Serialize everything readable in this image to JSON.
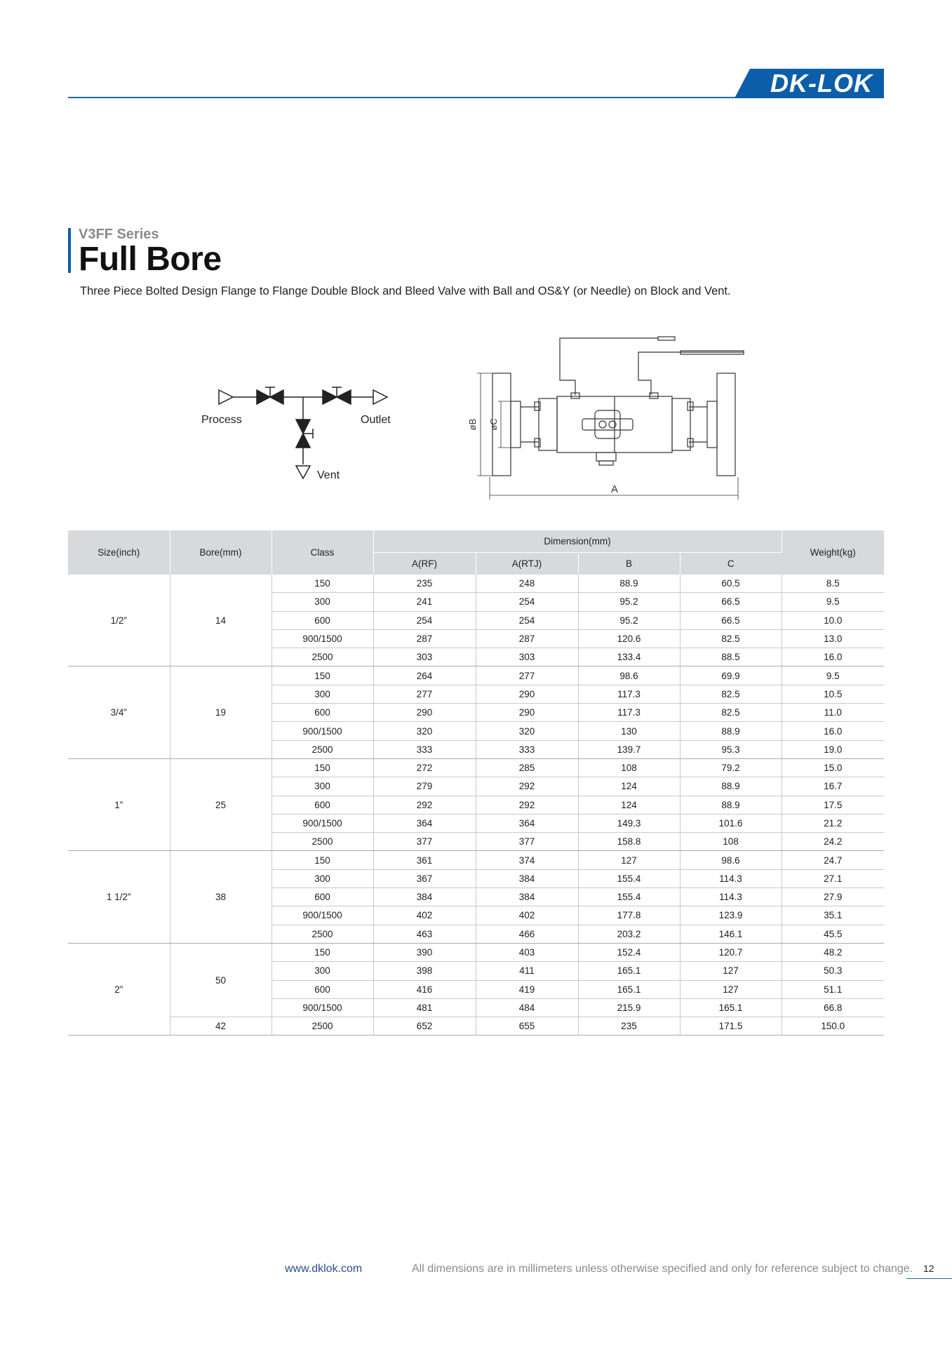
{
  "header": {
    "logo_text": "DK-LOK",
    "brand_color": "#0c5ea8"
  },
  "section": {
    "series": "V3FF Series",
    "title": "Full Bore",
    "description": "Three Piece Bolted Design Flange to Flange Double Block and Bleed Valve with Ball and OS&Y (or Needle) on Block and Vent."
  },
  "schematic": {
    "process_label": "Process",
    "outlet_label": "Outlet",
    "vent_label": "Vent"
  },
  "drawing": {
    "dim_a": "A",
    "dim_b": "øB",
    "dim_c": "øC"
  },
  "table": {
    "headers": {
      "size": "Size(inch)",
      "bore": "Bore(mm)",
      "class": "Class",
      "dimension": "Dimension(mm)",
      "a_rf": "A(RF)",
      "a_rtj": "A(RTJ)",
      "b": "B",
      "c": "C",
      "weight": "Weight(kg)"
    },
    "groups": [
      {
        "size": "1/2”",
        "bore": "14",
        "rows": [
          [
            "150",
            "235",
            "248",
            "88.9",
            "60.5",
            "8.5"
          ],
          [
            "300",
            "241",
            "254",
            "95.2",
            "66.5",
            "9.5"
          ],
          [
            "600",
            "254",
            "254",
            "95.2",
            "66.5",
            "10.0"
          ],
          [
            "900/1500",
            "287",
            "287",
            "120.6",
            "82.5",
            "13.0"
          ],
          [
            "2500",
            "303",
            "303",
            "133.4",
            "88.5",
            "16.0"
          ]
        ]
      },
      {
        "size": "3/4”",
        "bore": "19",
        "rows": [
          [
            "150",
            "264",
            "277",
            "98.6",
            "69.9",
            "9.5"
          ],
          [
            "300",
            "277",
            "290",
            "117.3",
            "82.5",
            "10.5"
          ],
          [
            "600",
            "290",
            "290",
            "117.3",
            "82.5",
            "11.0"
          ],
          [
            "900/1500",
            "320",
            "320",
            "130",
            "88.9",
            "16.0"
          ],
          [
            "2500",
            "333",
            "333",
            "139.7",
            "95.3",
            "19.0"
          ]
        ]
      },
      {
        "size": "1”",
        "bore": "25",
        "rows": [
          [
            "150",
            "272",
            "285",
            "108",
            "79.2",
            "15.0"
          ],
          [
            "300",
            "279",
            "292",
            "124",
            "88.9",
            "16.7"
          ],
          [
            "600",
            "292",
            "292",
            "124",
            "88.9",
            "17.5"
          ],
          [
            "900/1500",
            "364",
            "364",
            "149.3",
            "101.6",
            "21.2"
          ],
          [
            "2500",
            "377",
            "377",
            "158.8",
            "108",
            "24.2"
          ]
        ]
      },
      {
        "size": "1 1/2”",
        "bore": "38",
        "rows": [
          [
            "150",
            "361",
            "374",
            "127",
            "98.6",
            "24.7"
          ],
          [
            "300",
            "367",
            "384",
            "155.4",
            "114.3",
            "27.1"
          ],
          [
            "600",
            "384",
            "384",
            "155.4",
            "114.3",
            "27.9"
          ],
          [
            "900/1500",
            "402",
            "402",
            "177.8",
            "123.9",
            "35.1"
          ],
          [
            "2500",
            "463",
            "466",
            "203.2",
            "146.1",
            "45.5"
          ]
        ]
      },
      {
        "size": "2”",
        "bore": "50",
        "bore_last": "42",
        "rows": [
          [
            "150",
            "390",
            "403",
            "152.4",
            "120.7",
            "48.2"
          ],
          [
            "300",
            "398",
            "411",
            "165.1",
            "127",
            "50.3"
          ],
          [
            "600",
            "416",
            "419",
            "165.1",
            "127",
            "51.1"
          ],
          [
            "900/1500",
            "481",
            "484",
            "215.9",
            "165.1",
            "66.8"
          ],
          [
            "2500",
            "652",
            "655",
            "235",
            "171.5",
            "150.0"
          ]
        ]
      }
    ]
  },
  "footer": {
    "url": "www.dklok.com",
    "note": "All dimensions are in millimeters unless otherwise specified and only for reference subject to change.",
    "page": "12"
  }
}
